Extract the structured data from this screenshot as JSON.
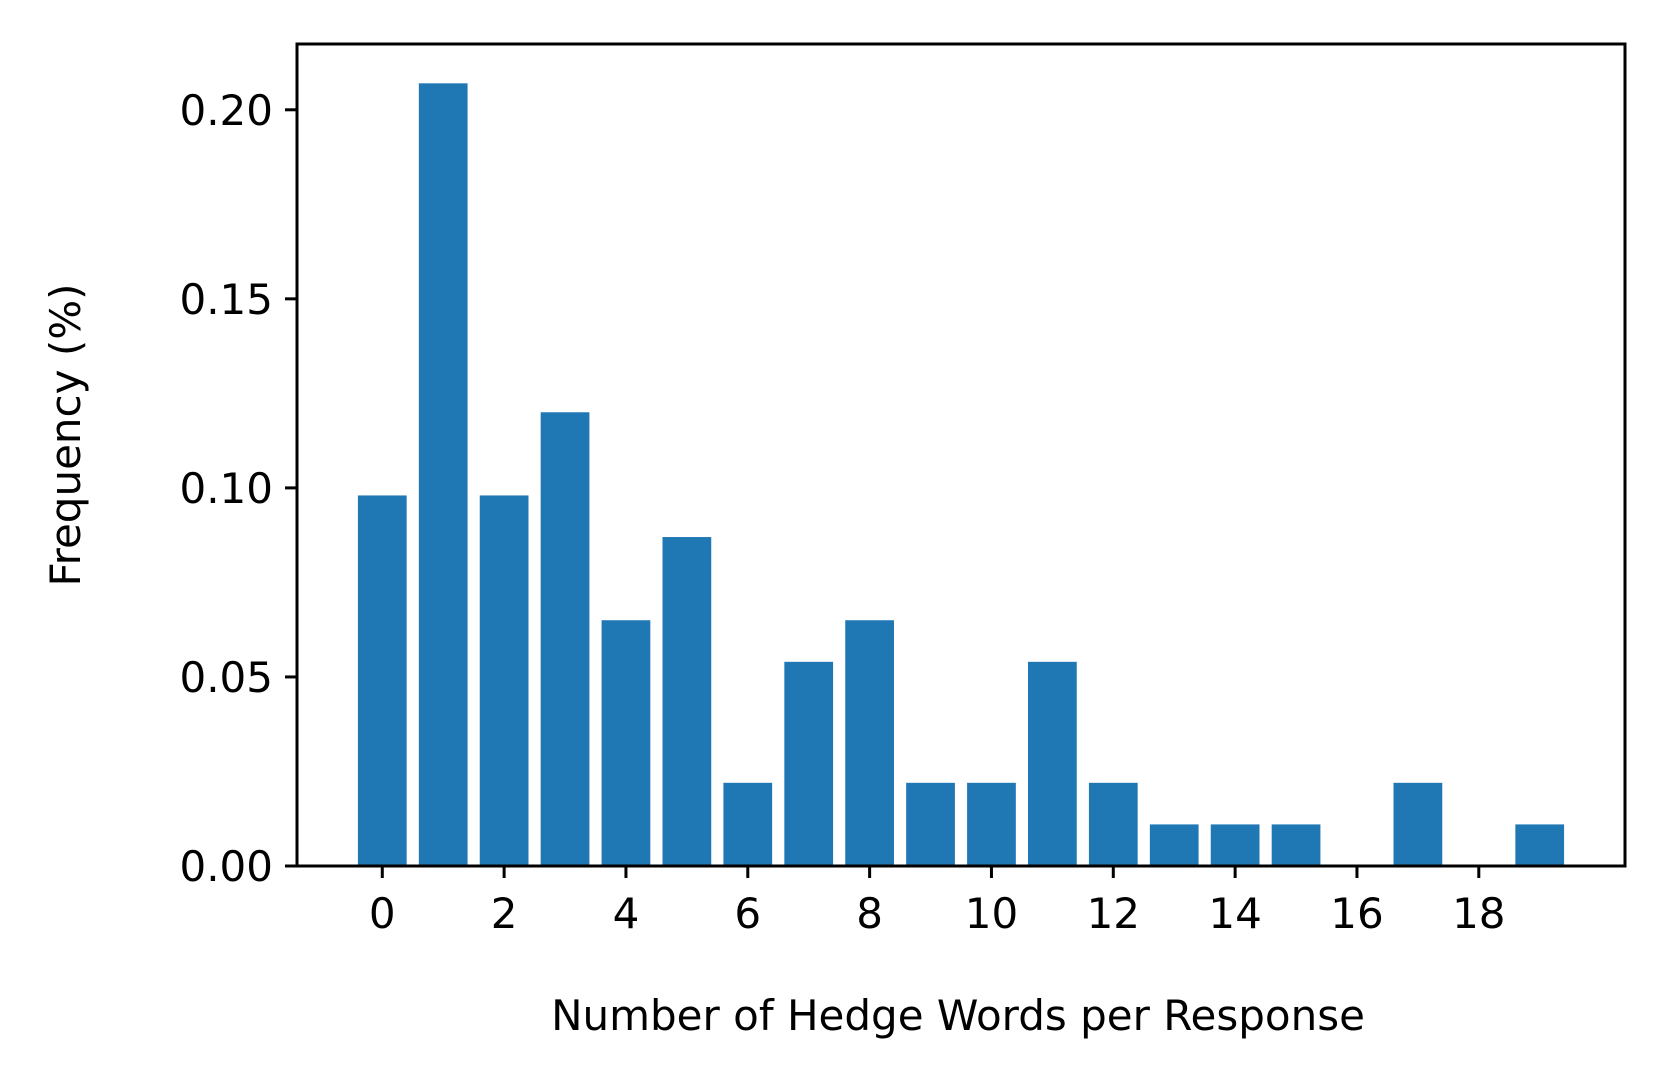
{
  "chart_data": {
    "type": "bar",
    "title": "",
    "xlabel": "Number of Hedge Words per Response",
    "ylabel": "Frequency (%)",
    "categories": [
      0,
      1,
      2,
      3,
      4,
      5,
      6,
      7,
      8,
      9,
      10,
      11,
      12,
      13,
      14,
      15,
      16,
      17,
      18,
      19
    ],
    "values": [
      0.098,
      0.207,
      0.098,
      0.12,
      0.065,
      0.087,
      0.022,
      0.054,
      0.065,
      0.022,
      0.022,
      0.054,
      0.022,
      0.011,
      0.011,
      0.011,
      0.0,
      0.022,
      0.0,
      0.011
    ],
    "xlim": [
      -1.4,
      20.4
    ],
    "ylim": [
      0,
      0.2174
    ],
    "xticks": [
      0,
      2,
      4,
      6,
      8,
      10,
      12,
      14,
      16,
      18
    ],
    "xtick_labels": [
      "0",
      "2",
      "4",
      "6",
      "8",
      "10",
      "12",
      "14",
      "16",
      "18"
    ],
    "yticks": [
      0.0,
      0.05,
      0.1,
      0.15,
      0.2
    ],
    "ytick_labels": [
      "0.00",
      "0.05",
      "0.10",
      "0.15",
      "0.20"
    ],
    "bar_color": "#1f77b4",
    "grid": false,
    "legend": "none"
  }
}
